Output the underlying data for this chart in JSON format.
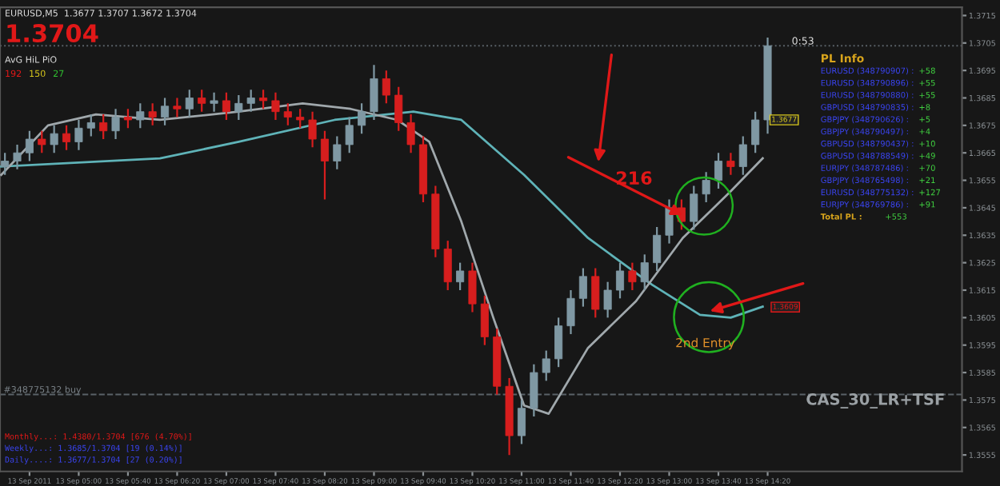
{
  "chart_data": {
    "type": "candlestick",
    "x": [
      "2011-09-13T04:00",
      "2011-09-13T04:10",
      "2011-09-13T04:20",
      "2011-09-13T04:30",
      "2011-09-13T04:40",
      "2011-09-13T04:50",
      "2011-09-13T05:00",
      "2011-09-13T05:10",
      "2011-09-13T05:20",
      "2011-09-13T05:30",
      "2011-09-13T05:40",
      "2011-09-13T05:50",
      "2011-09-13T06:00",
      "2011-09-13T06:10",
      "2011-09-13T06:20",
      "2011-09-13T06:30",
      "2011-09-13T06:40",
      "2011-09-13T06:50",
      "2011-09-13T07:00",
      "2011-09-13T07:10",
      "2011-09-13T07:20",
      "2011-09-13T07:30",
      "2011-09-13T07:40",
      "2011-09-13T07:50",
      "2011-09-13T08:00",
      "2011-09-13T08:10",
      "2011-09-13T08:20",
      "2011-09-13T08:30",
      "2011-09-13T08:40",
      "2011-09-13T08:50",
      "2011-09-13T09:00",
      "2011-09-13T09:10",
      "2011-09-13T09:20",
      "2011-09-13T09:30",
      "2011-09-13T09:40",
      "2011-09-13T09:50",
      "2011-09-13T10:00",
      "2011-09-13T10:10",
      "2011-09-13T10:20",
      "2011-09-13T10:30",
      "2011-09-13T10:40",
      "2011-09-13T10:50",
      "2011-09-13T11:00",
      "2011-09-13T11:10",
      "2011-09-13T11:20",
      "2011-09-13T11:30",
      "2011-09-13T11:40",
      "2011-09-13T11:50",
      "2011-09-13T12:00",
      "2011-09-13T12:10",
      "2011-09-13T12:20",
      "2011-09-13T12:30",
      "2011-09-13T12:40",
      "2011-09-13T12:50",
      "2011-09-13T13:00",
      "2011-09-13T13:10",
      "2011-09-13T13:20",
      "2011-09-13T13:30",
      "2011-09-13T13:40",
      "2011-09-13T13:50",
      "2011-09-13T14:00",
      "2011-09-13T14:10",
      "2011-09-13T14:20"
    ],
    "ohlc": [
      [
        1.366,
        1.3665,
        1.3657,
        1.3662
      ],
      [
        1.3662,
        1.3668,
        1.3659,
        1.3665
      ],
      [
        1.3665,
        1.3673,
        1.3662,
        1.367
      ],
      [
        1.367,
        1.3673,
        1.3665,
        1.3668
      ],
      [
        1.3668,
        1.3675,
        1.3665,
        1.3672
      ],
      [
        1.3672,
        1.3675,
        1.3666,
        1.3669
      ],
      [
        1.3669,
        1.3677,
        1.3666,
        1.3674
      ],
      [
        1.3674,
        1.3679,
        1.3671,
        1.3676
      ],
      [
        1.3676,
        1.3679,
        1.367,
        1.3673
      ],
      [
        1.3673,
        1.3681,
        1.367,
        1.3678
      ],
      [
        1.3678,
        1.3681,
        1.3674,
        1.3677
      ],
      [
        1.3677,
        1.3683,
        1.3674,
        1.368
      ],
      [
        1.368,
        1.3683,
        1.3675,
        1.3678
      ],
      [
        1.3678,
        1.3685,
        1.3675,
        1.3682
      ],
      [
        1.3682,
        1.3685,
        1.3678,
        1.3681
      ],
      [
        1.3681,
        1.3688,
        1.3678,
        1.3685
      ],
      [
        1.3685,
        1.3688,
        1.368,
        1.3683
      ],
      [
        1.3683,
        1.3687,
        1.368,
        1.3684
      ],
      [
        1.3684,
        1.3687,
        1.3677,
        1.368
      ],
      [
        1.368,
        1.3686,
        1.3677,
        1.3683
      ],
      [
        1.3683,
        1.3688,
        1.368,
        1.3685
      ],
      [
        1.3685,
        1.3688,
        1.3681,
        1.3684
      ],
      [
        1.3684,
        1.3687,
        1.3677,
        1.368
      ],
      [
        1.368,
        1.3683,
        1.3675,
        1.3678
      ],
      [
        1.3678,
        1.3681,
        1.3674,
        1.3677
      ],
      [
        1.3677,
        1.368,
        1.3667,
        1.367
      ],
      [
        1.367,
        1.3673,
        1.3648,
        1.3662
      ],
      [
        1.3662,
        1.3671,
        1.3659,
        1.3668
      ],
      [
        1.3668,
        1.3678,
        1.3665,
        1.3675
      ],
      [
        1.3675,
        1.3683,
        1.3672,
        1.368
      ],
      [
        1.368,
        1.3697,
        1.3677,
        1.3692
      ],
      [
        1.3692,
        1.3695,
        1.3683,
        1.3686
      ],
      [
        1.3686,
        1.3689,
        1.3673,
        1.3676
      ],
      [
        1.3676,
        1.3679,
        1.3665,
        1.3668
      ],
      [
        1.3668,
        1.3671,
        1.3647,
        1.365
      ],
      [
        1.365,
        1.3653,
        1.3627,
        1.363
      ],
      [
        1.363,
        1.3633,
        1.3615,
        1.3618
      ],
      [
        1.3618,
        1.3625,
        1.3615,
        1.3622
      ],
      [
        1.3622,
        1.3625,
        1.3607,
        1.361
      ],
      [
        1.361,
        1.3613,
        1.3595,
        1.3598
      ],
      [
        1.3598,
        1.3601,
        1.3577,
        1.358
      ],
      [
        1.358,
        1.3583,
        1.3555,
        1.3562
      ],
      [
        1.3562,
        1.3575,
        1.3559,
        1.3572
      ],
      [
        1.3572,
        1.3588,
        1.3569,
        1.3585
      ],
      [
        1.3585,
        1.3593,
        1.3582,
        1.359
      ],
      [
        1.359,
        1.3605,
        1.3587,
        1.3602
      ],
      [
        1.3602,
        1.3615,
        1.3599,
        1.3612
      ],
      [
        1.3612,
        1.3623,
        1.3609,
        1.362
      ],
      [
        1.362,
        1.3623,
        1.3605,
        1.3608
      ],
      [
        1.3608,
        1.3618,
        1.3605,
        1.3615
      ],
      [
        1.3615,
        1.3625,
        1.3612,
        1.3622
      ],
      [
        1.3622,
        1.3625,
        1.3615,
        1.3618
      ],
      [
        1.3618,
        1.3628,
        1.3615,
        1.3625
      ],
      [
        1.3625,
        1.3638,
        1.3622,
        1.3635
      ],
      [
        1.3635,
        1.3648,
        1.3632,
        1.3645
      ],
      [
        1.3645,
        1.3648,
        1.3637,
        1.364
      ],
      [
        1.364,
        1.3653,
        1.3637,
        1.365
      ],
      [
        1.365,
        1.3658,
        1.3647,
        1.3655
      ],
      [
        1.3655,
        1.3665,
        1.3652,
        1.3662
      ],
      [
        1.3662,
        1.3665,
        1.3657,
        1.366
      ],
      [
        1.366,
        1.3671,
        1.3657,
        1.3668
      ],
      [
        1.3668,
        1.368,
        1.3665,
        1.3677
      ],
      [
        1.3677,
        1.3707,
        1.3672,
        1.3704
      ]
    ],
    "colors": [
      "#7f98a3",
      "#7f98a3",
      "#7f98a3",
      "#d71e1e",
      "#7f98a3",
      "#d71e1e",
      "#7f98a3",
      "#7f98a3",
      "#d71e1e",
      "#7f98a3",
      "#d71e1e",
      "#7f98a3",
      "#d71e1e",
      "#7f98a3",
      "#d71e1e",
      "#7f98a3",
      "#d71e1e",
      "#7f98a3",
      "#d71e1e",
      "#7f98a3",
      "#7f98a3",
      "#d71e1e",
      "#d71e1e",
      "#d71e1e",
      "#d71e1e",
      "#d71e1e",
      "#d71e1e",
      "#7f98a3",
      "#7f98a3",
      "#7f98a3",
      "#7f98a3",
      "#d71e1e",
      "#d71e1e",
      "#d71e1e",
      "#d71e1e",
      "#d71e1e",
      "#d71e1e",
      "#7f98a3",
      "#d71e1e",
      "#d71e1e",
      "#d71e1e",
      "#d71e1e",
      "#7f98a3",
      "#7f98a3",
      "#7f98a3",
      "#7f98a3",
      "#7f98a3",
      "#7f98a3",
      "#d71e1e",
      "#7f98a3",
      "#7f98a3",
      "#d71e1e",
      "#7f98a3",
      "#7f98a3",
      "#7f98a3",
      "#d71e1e",
      "#7f98a3",
      "#7f98a3",
      "#7f98a3",
      "#d71e1e",
      "#7f98a3",
      "#7f98a3",
      "#7f98a3"
    ],
    "series": [
      {
        "type": "line",
        "color": "#5fb3b8",
        "x": [
          "2011-09-13T03:57",
          "2011-09-13T06:06",
          "2011-09-13T07:10",
          "2011-09-13T08:28",
          "2011-09-13T09:32",
          "2011-09-13T10:11",
          "2011-09-13T11:02",
          "2011-09-13T11:54",
          "2011-09-13T12:46",
          "2011-09-13T13:25",
          "2011-09-13T13:50",
          "2011-09-13T14:16"
        ],
        "values": [
          1.366,
          1.3663,
          1.3669,
          1.3677,
          1.368,
          1.3677,
          1.3657,
          1.3634,
          1.3617,
          1.3606,
          1.3605,
          1.3609
        ]
      },
      {
        "type": "line",
        "color": "#a0a8ac",
        "x": [
          "2011-09-13T03:57",
          "2011-09-13T04:35",
          "2011-09-13T05:14",
          "2011-09-13T06:06",
          "2011-09-13T07:10",
          "2011-09-13T08:02",
          "2011-09-13T08:41",
          "2011-09-13T09:19",
          "2011-09-13T09:45",
          "2011-09-13T10:11",
          "2011-09-13T10:37",
          "2011-09-13T11:02",
          "2011-09-13T11:22",
          "2011-09-13T11:54",
          "2011-09-13T12:33",
          "2011-09-13T13:11",
          "2011-09-13T13:50",
          "2011-09-13T14:16"
        ],
        "values": [
          1.3657,
          1.3675,
          1.3679,
          1.3677,
          1.368,
          1.3683,
          1.3681,
          1.3677,
          1.3669,
          1.364,
          1.3605,
          1.3573,
          1.357,
          1.3594,
          1.3611,
          1.3634,
          1.3651,
          1.3663
        ]
      }
    ],
    "xlim": [
      "2011-09-13T03:56",
      "2011-09-13T16:58"
    ],
    "ylim": [
      1.3549,
      1.3718
    ],
    "xticks": [
      {
        "value": "2011-09-13T04:20",
        "label": "13 Sep 2011"
      },
      {
        "value": "2011-09-13T05:00",
        "label": "13 Sep 05:00"
      },
      {
        "value": "2011-09-13T05:40",
        "label": "13 Sep 05:40"
      },
      {
        "value": "2011-09-13T06:20",
        "label": "13 Sep 06:20"
      },
      {
        "value": "2011-09-13T07:00",
        "label": "13 Sep 07:00"
      },
      {
        "value": "2011-09-13T07:40",
        "label": "13 Sep 07:40"
      },
      {
        "value": "2011-09-13T08:20",
        "label": "13 Sep 08:20"
      },
      {
        "value": "2011-09-13T09:00",
        "label": "13 Sep 09:00"
      },
      {
        "value": "2011-09-13T09:40",
        "label": "13 Sep 09:40"
      },
      {
        "value": "2011-09-13T10:20",
        "label": "13 Sep 10:20"
      },
      {
        "value": "2011-09-13T11:00",
        "label": "13 Sep 11:00"
      },
      {
        "value": "2011-09-13T11:40",
        "label": "13 Sep 11:40"
      },
      {
        "value": "2011-09-13T12:20",
        "label": "13 Sep 12:20"
      },
      {
        "value": "2011-09-13T13:00",
        "label": "13 Sep 13:00"
      },
      {
        "value": "2011-09-13T13:40",
        "label": "13 Sep 13:40"
      },
      {
        "value": "2011-09-13T14:20",
        "label": "13 Sep 14:20"
      }
    ],
    "yticks": [
      1.3555,
      1.3565,
      1.3575,
      1.3585,
      1.3595,
      1.3605,
      1.3615,
      1.3625,
      1.3635,
      1.3645,
      1.3655,
      1.3665,
      1.3675,
      1.3685,
      1.3695,
      1.3705,
      1.3715
    ],
    "ref_lines": [
      {
        "axis": "y",
        "value": 1.3577,
        "label": "#348775132 buy",
        "color": "#5a6268",
        "line_style": "dashed"
      },
      {
        "axis": "y",
        "value": 1.3704,
        "label": null,
        "color": "#5a6268",
        "line_style": "dotted"
      }
    ],
    "annotations": [
      "EURUSD,M5  1.3677 1.3707 1.3672 1.3704",
      "1.3704",
      "AvG HiL PiO",
      "192",
      "150",
      "27",
      "0:53",
      "PL Info",
      "EURUSD (348790907) :",
      "+58",
      "EURUSD (348790896) :",
      "+55",
      "EURUSD (348790880) :",
      "+55",
      "GBPUSD (348790835) :",
      "+8",
      "GBPJPY (348790626) :",
      "+5",
      "GBPJPY (348790497) :",
      "+4",
      "GBPUSD (348790437) :",
      "+10",
      "GBPUSD (348788549) :",
      "+49",
      "EURJPY (348787486) :",
      "+70",
      "GBPJPY (348765498) :",
      "+21",
      "EURUSD (348775132) :",
      "+127",
      "EURJPY (348769786) :",
      "+91",
      "Total PL :",
      "+553",
      "Monthly...: 1.4380/1.3704 [676 (4.70%)]",
      "Weekly...: 1.3685/1.3704 [19 (0.14%)]",
      "Daily....: 1.3677/1.3704 [27 (0.20%)]",
      "CAS_30_LR+TSF",
      "216",
      "2nd Entry",
      "1.3609",
      {
        "text": "1.3677",
        "x": "2011-09-13T14:23",
        "y": 1.3677
      }
    ]
  }
}
